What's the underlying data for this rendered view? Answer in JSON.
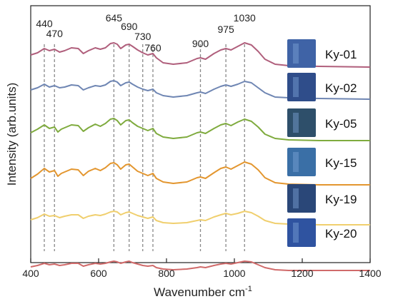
{
  "chart_data": {
    "type": "line",
    "xlabel": "Wavenumber cm",
    "xlabel_sup": "-1",
    "ylabel": "Intensity (arb.units)",
    "xlim": [
      400,
      1400
    ],
    "xticks": [
      "400",
      "600",
      "800",
      "1000",
      "1200",
      "1400"
    ],
    "grid": false,
    "peaks": [
      {
        "x": 440,
        "label": "440"
      },
      {
        "x": 470,
        "label": "470"
      },
      {
        "x": 645,
        "label": "645"
      },
      {
        "x": 690,
        "label": "690"
      },
      {
        "x": 730,
        "label": "730"
      },
      {
        "x": 760,
        "label": "760"
      },
      {
        "x": 900,
        "label": "900"
      },
      {
        "x": 975,
        "label": "975"
      },
      {
        "x": 1030,
        "label": "1030"
      }
    ],
    "series": [
      {
        "name": "Ky-01",
        "color": "#b05f7c",
        "points": [
          [
            400,
            3.3
          ],
          [
            420,
            3.6
          ],
          [
            440,
            4.2
          ],
          [
            455,
            3.9
          ],
          [
            470,
            4.1
          ],
          [
            485,
            3.7
          ],
          [
            500,
            3.9
          ],
          [
            520,
            4.3
          ],
          [
            540,
            4.2
          ],
          [
            555,
            3.5
          ],
          [
            570,
            3.9
          ],
          [
            590,
            4.3
          ],
          [
            605,
            4.1
          ],
          [
            620,
            4.3
          ],
          [
            635,
            4.9
          ],
          [
            645,
            5.0
          ],
          [
            655,
            4.8
          ],
          [
            665,
            4.2
          ],
          [
            680,
            4.7
          ],
          [
            690,
            4.8
          ],
          [
            700,
            4.5
          ],
          [
            715,
            4.0
          ],
          [
            730,
            3.6
          ],
          [
            745,
            3.3
          ],
          [
            760,
            3.5
          ],
          [
            770,
            2.9
          ],
          [
            790,
            2.2
          ],
          [
            820,
            2.0
          ],
          [
            860,
            2.2
          ],
          [
            890,
            2.8
          ],
          [
            900,
            2.9
          ],
          [
            915,
            2.7
          ],
          [
            940,
            3.5
          ],
          [
            960,
            4.0
          ],
          [
            975,
            4.2
          ],
          [
            990,
            4.0
          ],
          [
            1010,
            4.5
          ],
          [
            1030,
            5.0
          ],
          [
            1050,
            4.7
          ],
          [
            1070,
            3.8
          ],
          [
            1090,
            2.7
          ],
          [
            1120,
            2.0
          ],
          [
            1160,
            1.8
          ],
          [
            1250,
            1.7
          ],
          [
            1400,
            1.6
          ]
        ]
      },
      {
        "name": "Ky-02",
        "color": "#6f86b3",
        "points": [
          [
            400,
            2.6
          ],
          [
            420,
            2.9
          ],
          [
            440,
            3.4
          ],
          [
            455,
            3.0
          ],
          [
            470,
            3.2
          ],
          [
            485,
            2.9
          ],
          [
            500,
            3.0
          ],
          [
            520,
            3.3
          ],
          [
            540,
            3.2
          ],
          [
            555,
            2.6
          ],
          [
            570,
            2.9
          ],
          [
            590,
            3.2
          ],
          [
            605,
            3.1
          ],
          [
            620,
            3.3
          ],
          [
            635,
            3.8
          ],
          [
            645,
            3.9
          ],
          [
            655,
            3.7
          ],
          [
            665,
            3.2
          ],
          [
            680,
            3.6
          ],
          [
            690,
            3.7
          ],
          [
            700,
            3.4
          ],
          [
            715,
            3.0
          ],
          [
            730,
            2.7
          ],
          [
            745,
            2.5
          ],
          [
            760,
            2.7
          ],
          [
            770,
            2.2
          ],
          [
            790,
            1.8
          ],
          [
            820,
            1.6
          ],
          [
            860,
            1.8
          ],
          [
            890,
            2.2
          ],
          [
            900,
            2.3
          ],
          [
            915,
            2.1
          ],
          [
            940,
            2.7
          ],
          [
            960,
            3.1
          ],
          [
            975,
            3.3
          ],
          [
            990,
            3.1
          ],
          [
            1010,
            3.4
          ],
          [
            1030,
            3.8
          ],
          [
            1050,
            3.6
          ],
          [
            1070,
            2.9
          ],
          [
            1090,
            2.2
          ],
          [
            1120,
            1.6
          ],
          [
            1160,
            1.5
          ],
          [
            1250,
            1.4
          ],
          [
            1400,
            1.3
          ]
        ]
      },
      {
        "name": "Ky-05",
        "color": "#7fab3e",
        "points": [
          [
            400,
            2.0
          ],
          [
            420,
            2.5
          ],
          [
            440,
            3.1
          ],
          [
            455,
            2.6
          ],
          [
            470,
            2.8
          ],
          [
            480,
            2.1
          ],
          [
            490,
            2.5
          ],
          [
            500,
            2.7
          ],
          [
            520,
            3.1
          ],
          [
            540,
            3.0
          ],
          [
            555,
            2.2
          ],
          [
            570,
            2.7
          ],
          [
            590,
            3.2
          ],
          [
            605,
            2.9
          ],
          [
            620,
            3.3
          ],
          [
            635,
            3.9
          ],
          [
            645,
            4.0
          ],
          [
            655,
            3.7
          ],
          [
            665,
            3.1
          ],
          [
            680,
            3.7
          ],
          [
            690,
            3.8
          ],
          [
            700,
            3.4
          ],
          [
            715,
            2.9
          ],
          [
            730,
            2.6
          ],
          [
            745,
            2.3
          ],
          [
            760,
            2.6
          ],
          [
            770,
            1.9
          ],
          [
            790,
            1.4
          ],
          [
            820,
            1.2
          ],
          [
            860,
            1.4
          ],
          [
            890,
            2.0
          ],
          [
            900,
            2.1
          ],
          [
            915,
            1.9
          ],
          [
            940,
            2.6
          ],
          [
            960,
            3.1
          ],
          [
            975,
            3.3
          ],
          [
            990,
            3.0
          ],
          [
            1010,
            3.5
          ],
          [
            1030,
            3.9
          ],
          [
            1050,
            3.6
          ],
          [
            1070,
            2.8
          ],
          [
            1090,
            1.8
          ],
          [
            1120,
            1.2
          ],
          [
            1160,
            1.0
          ],
          [
            1250,
            0.9
          ],
          [
            1400,
            0.9
          ]
        ]
      },
      {
        "name": "Ky-15",
        "color": "#e3962f",
        "points": [
          [
            400,
            1.2
          ],
          [
            420,
            1.8
          ],
          [
            440,
            2.6
          ],
          [
            455,
            2.1
          ],
          [
            470,
            2.3
          ],
          [
            480,
            1.5
          ],
          [
            490,
            1.9
          ],
          [
            500,
            2.1
          ],
          [
            520,
            2.5
          ],
          [
            540,
            2.4
          ],
          [
            555,
            1.6
          ],
          [
            570,
            2.2
          ],
          [
            590,
            2.6
          ],
          [
            605,
            2.3
          ],
          [
            620,
            2.7
          ],
          [
            635,
            3.3
          ],
          [
            645,
            3.4
          ],
          [
            655,
            3.1
          ],
          [
            665,
            2.5
          ],
          [
            680,
            3.1
          ],
          [
            690,
            3.2
          ],
          [
            700,
            2.8
          ],
          [
            715,
            2.2
          ],
          [
            730,
            1.9
          ],
          [
            745,
            1.6
          ],
          [
            760,
            1.9
          ],
          [
            770,
            1.2
          ],
          [
            790,
            0.7
          ],
          [
            820,
            0.5
          ],
          [
            860,
            0.7
          ],
          [
            890,
            1.3
          ],
          [
            900,
            1.4
          ],
          [
            915,
            1.2
          ],
          [
            940,
            2.0
          ],
          [
            960,
            2.6
          ],
          [
            975,
            2.8
          ],
          [
            990,
            2.5
          ],
          [
            1010,
            3.0
          ],
          [
            1030,
            3.5
          ],
          [
            1050,
            3.2
          ],
          [
            1070,
            2.4
          ],
          [
            1090,
            1.3
          ],
          [
            1120,
            0.6
          ],
          [
            1160,
            0.4
          ],
          [
            1250,
            0.3
          ],
          [
            1400,
            0.3
          ]
        ]
      },
      {
        "name": "Ky-19",
        "color": "#f0cf6e",
        "points": [
          [
            400,
            0.4
          ],
          [
            420,
            0.7
          ],
          [
            440,
            1.2
          ],
          [
            455,
            0.9
          ],
          [
            470,
            1.0
          ],
          [
            485,
            0.7
          ],
          [
            500,
            0.9
          ],
          [
            520,
            1.1
          ],
          [
            540,
            1.1
          ],
          [
            555,
            0.6
          ],
          [
            570,
            0.9
          ],
          [
            590,
            1.1
          ],
          [
            605,
            1.0
          ],
          [
            620,
            1.2
          ],
          [
            635,
            1.5
          ],
          [
            645,
            1.6
          ],
          [
            655,
            1.5
          ],
          [
            665,
            1.1
          ],
          [
            680,
            1.4
          ],
          [
            690,
            1.5
          ],
          [
            700,
            1.3
          ],
          [
            715,
            1.0
          ],
          [
            730,
            0.8
          ],
          [
            745,
            0.6
          ],
          [
            760,
            0.8
          ],
          [
            770,
            0.3
          ],
          [
            790,
            0.0
          ],
          [
            820,
            -0.1
          ],
          [
            860,
            0.0
          ],
          [
            890,
            0.3
          ],
          [
            900,
            0.4
          ],
          [
            915,
            0.3
          ],
          [
            940,
            0.8
          ],
          [
            960,
            1.1
          ],
          [
            975,
            1.3
          ],
          [
            990,
            1.1
          ],
          [
            1010,
            1.3
          ],
          [
            1030,
            1.6
          ],
          [
            1050,
            1.4
          ],
          [
            1070,
            0.9
          ],
          [
            1090,
            0.3
          ],
          [
            1120,
            -0.1
          ],
          [
            1160,
            -0.2
          ],
          [
            1250,
            -0.3
          ],
          [
            1400,
            -0.3
          ]
        ]
      },
      {
        "name": "Ky-20",
        "color": "#d06a6a",
        "points": [
          [
            400,
            -1.0
          ],
          [
            420,
            -0.8
          ],
          [
            440,
            -0.5
          ],
          [
            455,
            -0.7
          ],
          [
            470,
            -0.6
          ],
          [
            485,
            -0.8
          ],
          [
            500,
            -0.7
          ],
          [
            520,
            -0.5
          ],
          [
            540,
            -0.5
          ],
          [
            555,
            -0.9
          ],
          [
            570,
            -0.7
          ],
          [
            590,
            -0.5
          ],
          [
            605,
            -0.6
          ],
          [
            620,
            -0.5
          ],
          [
            635,
            -0.3
          ],
          [
            645,
            -0.2
          ],
          [
            655,
            -0.3
          ],
          [
            665,
            -0.5
          ],
          [
            680,
            -0.3
          ],
          [
            690,
            -0.2
          ],
          [
            700,
            -0.4
          ],
          [
            715,
            -0.6
          ],
          [
            730,
            -0.8
          ],
          [
            745,
            -0.9
          ],
          [
            760,
            -0.8
          ],
          [
            770,
            -1.1
          ],
          [
            790,
            -1.3
          ],
          [
            820,
            -1.4
          ],
          [
            860,
            -1.3
          ],
          [
            890,
            -1.1
          ],
          [
            900,
            -1.0
          ],
          [
            915,
            -1.1
          ],
          [
            940,
            -0.8
          ],
          [
            960,
            -0.6
          ],
          [
            975,
            -0.5
          ],
          [
            990,
            -0.6
          ],
          [
            1010,
            -0.4
          ],
          [
            1030,
            -0.2
          ],
          [
            1050,
            -0.3
          ],
          [
            1070,
            -0.7
          ],
          [
            1090,
            -1.1
          ],
          [
            1120,
            -1.4
          ],
          [
            1160,
            -1.5
          ],
          [
            1250,
            -1.5
          ],
          [
            1400,
            -1.5
          ]
        ]
      }
    ]
  },
  "sample_swatches": [
    {
      "name": "Ky-01",
      "color": "#3f63a6"
    },
    {
      "name": "Ky-02",
      "color": "#2f4d8a"
    },
    {
      "name": "Ky-05",
      "color": "#2e4f6a"
    },
    {
      "name": "Ky-15",
      "color": "#3a6fa6"
    },
    {
      "name": "Ky-19",
      "color": "#2a4778"
    },
    {
      "name": "Ky-20",
      "color": "#2f53a0"
    }
  ]
}
